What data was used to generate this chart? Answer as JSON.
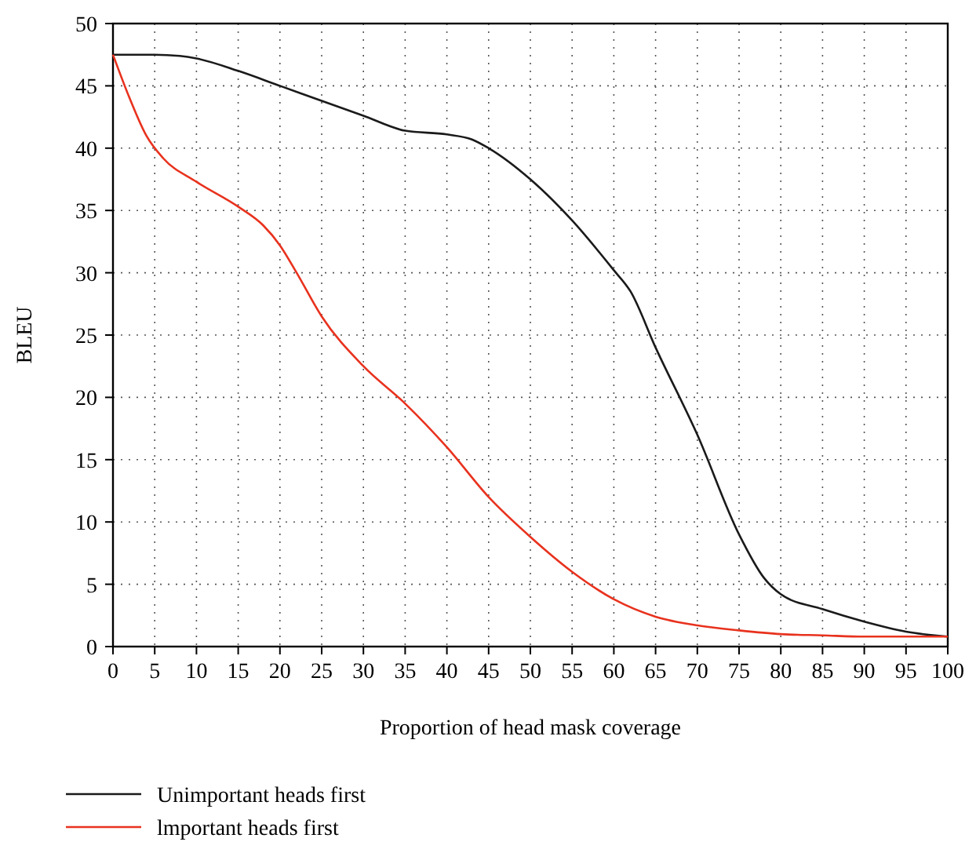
{
  "chart_data": {
    "type": "line",
    "xlabel": "Proportion of head mask coverage",
    "ylabel": "BLEU",
    "xlim": [
      0,
      100
    ],
    "ylim": [
      0,
      50
    ],
    "xticks": [
      0,
      5,
      10,
      15,
      20,
      25,
      30,
      35,
      40,
      45,
      50,
      55,
      60,
      65,
      70,
      75,
      80,
      85,
      90,
      95,
      100
    ],
    "yticks": [
      0,
      5,
      10,
      15,
      20,
      25,
      30,
      35,
      40,
      45,
      50
    ],
    "grid": true,
    "legend": "bottom",
    "marker": "none",
    "line_style": "solid",
    "series": [
      {
        "name": "Unimportant heads first",
        "color": "#1a1a1a",
        "x": [
          0,
          5,
          8,
          10,
          15,
          20,
          25,
          30,
          35,
          40,
          43,
          45,
          50,
          55,
          60,
          62,
          65,
          70,
          75,
          78,
          80,
          85,
          90,
          95,
          100
        ],
        "values": [
          47.5,
          47.5,
          47.4,
          47.2,
          46.2,
          45,
          43.8,
          42.6,
          41.4,
          41.1,
          40.7,
          40,
          37.5,
          34.2,
          30.2,
          28.5,
          24,
          17,
          9,
          5.5,
          4.2,
          3,
          2,
          1.2,
          0.8
        ]
      },
      {
        "name": "lmportant heads first",
        "color": "#e8321e",
        "x": [
          0,
          2,
          4,
          6,
          10,
          15,
          18,
          20,
          22,
          25,
          30,
          35,
          40,
          45,
          50,
          55,
          60,
          65,
          70,
          75,
          80,
          85,
          90,
          100
        ],
        "values": [
          47.5,
          44,
          41,
          39.2,
          37.3,
          35.3,
          33.8,
          32.2,
          30,
          26.5,
          22.5,
          19.5,
          16,
          12,
          8.8,
          6,
          3.8,
          2.4,
          1.7,
          1.3,
          1.0,
          0.9,
          0.8,
          0.8
        ]
      }
    ]
  }
}
